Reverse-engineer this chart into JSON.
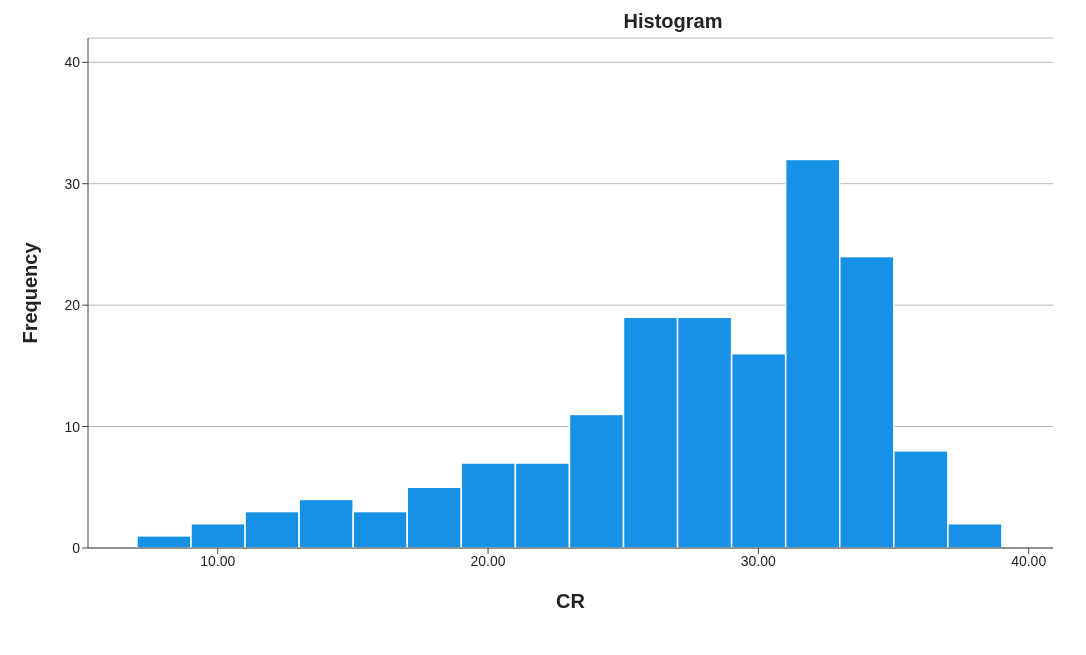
{
  "chart_data": {
    "type": "histogram",
    "title": "Histogram",
    "xlabel": "CR",
    "ylabel": "Frequency",
    "color": "#1592e6",
    "bins": [
      7,
      9,
      11,
      13,
      15,
      17,
      19,
      21,
      23,
      25,
      27,
      29,
      31,
      33,
      35,
      37,
      39
    ],
    "values": [
      1,
      2,
      3,
      4,
      3,
      5,
      7,
      7,
      11,
      19,
      19,
      16,
      32,
      24,
      8,
      2
    ],
    "xlim": [
      5.2,
      40.9
    ],
    "xticks": [
      {
        "value": 10,
        "label": "10.00"
      },
      {
        "value": 20,
        "label": "20.00"
      },
      {
        "value": 30,
        "label": "30.00"
      },
      {
        "value": 40,
        "label": "40.00"
      }
    ],
    "ylim": [
      0,
      42
    ],
    "yticks": [
      0,
      10,
      20,
      30,
      40
    ],
    "grid": "y",
    "legend": false
  }
}
